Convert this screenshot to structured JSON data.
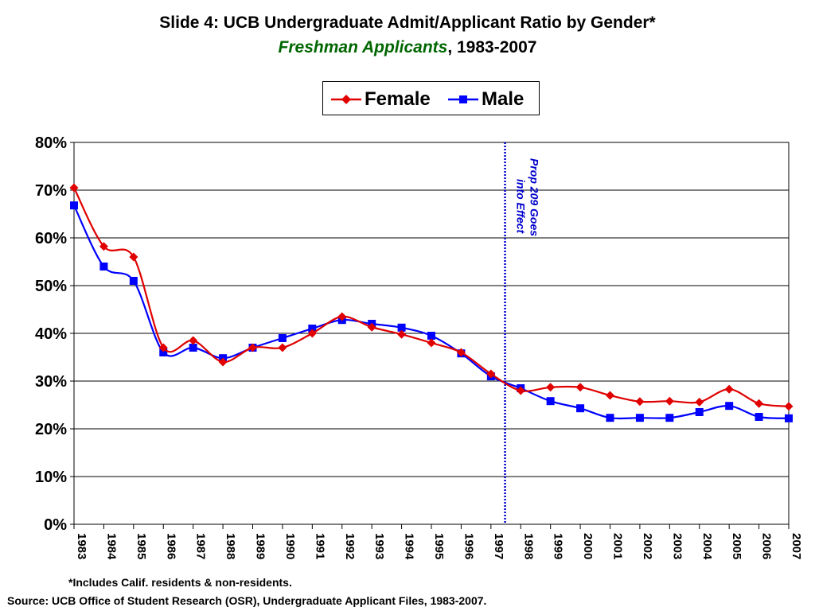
{
  "title": "Slide 4: UCB Undergraduate Admit/Applicant Ratio by Gender*",
  "subtitle_green": "Freshman Applicants",
  "subtitle_rest": ", 1983-2007",
  "footnote": "*Includes Calif. residents  & non-residents.",
  "source": "Source: UCB Office of Student Research (OSR), Undergraduate Applicant Files, 1983-2007.",
  "annotation": {
    "line1": "Prop 209 Goes",
    "line2": "into Effect",
    "x_between": [
      1997,
      1998
    ],
    "color": "#0000cc"
  },
  "chart_data": {
    "type": "line",
    "title": "Slide 4: UCB Undergraduate Admit/Applicant Ratio by Gender*",
    "xlabel": "",
    "ylabel": "",
    "ylim": [
      0,
      80
    ],
    "yticks": [
      "0%",
      "10%",
      "20%",
      "30%",
      "40%",
      "50%",
      "60%",
      "70%",
      "80%"
    ],
    "grid": true,
    "legend_position": "top-right",
    "categories": [
      "1983",
      "1984",
      "1985",
      "1986",
      "1987",
      "1988",
      "1989",
      "1990",
      "1991",
      "1992",
      "1993",
      "1994",
      "1995",
      "1996",
      "1997",
      "1998",
      "1999",
      "2000",
      "2001",
      "2002",
      "2003",
      "2004",
      "2005",
      "2006",
      "2007"
    ],
    "series": [
      {
        "name": "Female",
        "color": "#e00000",
        "marker": "diamond",
        "values": [
          70.5,
          58.2,
          56.0,
          37.0,
          38.5,
          34.0,
          37.0,
          37.0,
          40.0,
          43.5,
          41.3,
          39.8,
          38.0,
          36.0,
          31.5,
          28.0,
          28.7,
          28.7,
          27.0,
          25.7,
          25.8,
          25.6,
          28.3,
          25.3,
          24.7
        ]
      },
      {
        "name": "Male",
        "color": "#0000ff",
        "marker": "square",
        "values": [
          66.8,
          54.0,
          51.0,
          36.0,
          37.0,
          34.8,
          37.0,
          39.0,
          41.0,
          42.8,
          42.0,
          41.2,
          39.5,
          35.8,
          31.0,
          28.5,
          25.8,
          24.3,
          22.3,
          22.3,
          22.3,
          23.5,
          24.8,
          22.5,
          22.2
        ]
      }
    ]
  }
}
